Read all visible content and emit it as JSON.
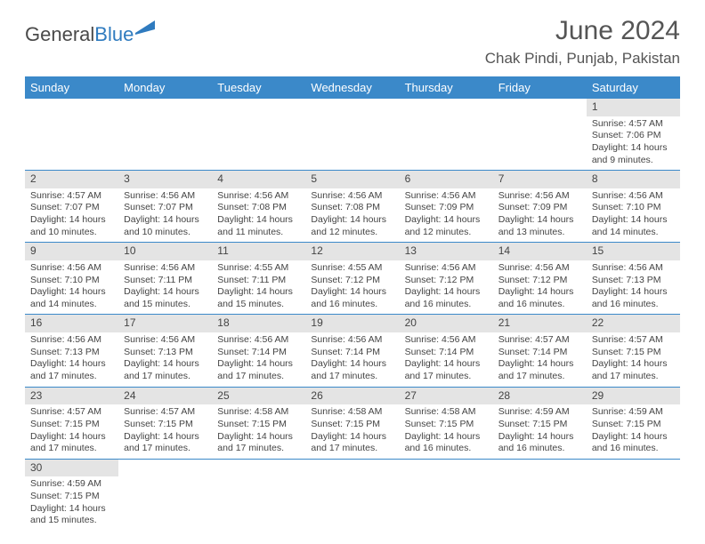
{
  "logo": {
    "dark": "General",
    "blue": "Blue"
  },
  "title": "June 2024",
  "location": "Chak Pindi, Punjab, Pakistan",
  "colors": {
    "header_bg": "#3b89c9",
    "header_text": "#ffffff",
    "daynum_bg": "#e4e4e4",
    "border": "#3b89c9"
  },
  "weekdays": [
    "Sunday",
    "Monday",
    "Tuesday",
    "Wednesday",
    "Thursday",
    "Friday",
    "Saturday"
  ],
  "weeks": [
    [
      null,
      null,
      null,
      null,
      null,
      null,
      {
        "n": "1",
        "sr": "Sunrise: 4:57 AM",
        "ss": "Sunset: 7:06 PM",
        "dl": "Daylight: 14 hours and 9 minutes."
      }
    ],
    [
      {
        "n": "2",
        "sr": "Sunrise: 4:57 AM",
        "ss": "Sunset: 7:07 PM",
        "dl": "Daylight: 14 hours and 10 minutes."
      },
      {
        "n": "3",
        "sr": "Sunrise: 4:56 AM",
        "ss": "Sunset: 7:07 PM",
        "dl": "Daylight: 14 hours and 10 minutes."
      },
      {
        "n": "4",
        "sr": "Sunrise: 4:56 AM",
        "ss": "Sunset: 7:08 PM",
        "dl": "Daylight: 14 hours and 11 minutes."
      },
      {
        "n": "5",
        "sr": "Sunrise: 4:56 AM",
        "ss": "Sunset: 7:08 PM",
        "dl": "Daylight: 14 hours and 12 minutes."
      },
      {
        "n": "6",
        "sr": "Sunrise: 4:56 AM",
        "ss": "Sunset: 7:09 PM",
        "dl": "Daylight: 14 hours and 12 minutes."
      },
      {
        "n": "7",
        "sr": "Sunrise: 4:56 AM",
        "ss": "Sunset: 7:09 PM",
        "dl": "Daylight: 14 hours and 13 minutes."
      },
      {
        "n": "8",
        "sr": "Sunrise: 4:56 AM",
        "ss": "Sunset: 7:10 PM",
        "dl": "Daylight: 14 hours and 14 minutes."
      }
    ],
    [
      {
        "n": "9",
        "sr": "Sunrise: 4:56 AM",
        "ss": "Sunset: 7:10 PM",
        "dl": "Daylight: 14 hours and 14 minutes."
      },
      {
        "n": "10",
        "sr": "Sunrise: 4:56 AM",
        "ss": "Sunset: 7:11 PM",
        "dl": "Daylight: 14 hours and 15 minutes."
      },
      {
        "n": "11",
        "sr": "Sunrise: 4:55 AM",
        "ss": "Sunset: 7:11 PM",
        "dl": "Daylight: 14 hours and 15 minutes."
      },
      {
        "n": "12",
        "sr": "Sunrise: 4:55 AM",
        "ss": "Sunset: 7:12 PM",
        "dl": "Daylight: 14 hours and 16 minutes."
      },
      {
        "n": "13",
        "sr": "Sunrise: 4:56 AM",
        "ss": "Sunset: 7:12 PM",
        "dl": "Daylight: 14 hours and 16 minutes."
      },
      {
        "n": "14",
        "sr": "Sunrise: 4:56 AM",
        "ss": "Sunset: 7:12 PM",
        "dl": "Daylight: 14 hours and 16 minutes."
      },
      {
        "n": "15",
        "sr": "Sunrise: 4:56 AM",
        "ss": "Sunset: 7:13 PM",
        "dl": "Daylight: 14 hours and 16 minutes."
      }
    ],
    [
      {
        "n": "16",
        "sr": "Sunrise: 4:56 AM",
        "ss": "Sunset: 7:13 PM",
        "dl": "Daylight: 14 hours and 17 minutes."
      },
      {
        "n": "17",
        "sr": "Sunrise: 4:56 AM",
        "ss": "Sunset: 7:13 PM",
        "dl": "Daylight: 14 hours and 17 minutes."
      },
      {
        "n": "18",
        "sr": "Sunrise: 4:56 AM",
        "ss": "Sunset: 7:14 PM",
        "dl": "Daylight: 14 hours and 17 minutes."
      },
      {
        "n": "19",
        "sr": "Sunrise: 4:56 AM",
        "ss": "Sunset: 7:14 PM",
        "dl": "Daylight: 14 hours and 17 minutes."
      },
      {
        "n": "20",
        "sr": "Sunrise: 4:56 AM",
        "ss": "Sunset: 7:14 PM",
        "dl": "Daylight: 14 hours and 17 minutes."
      },
      {
        "n": "21",
        "sr": "Sunrise: 4:57 AM",
        "ss": "Sunset: 7:14 PM",
        "dl": "Daylight: 14 hours and 17 minutes."
      },
      {
        "n": "22",
        "sr": "Sunrise: 4:57 AM",
        "ss": "Sunset: 7:15 PM",
        "dl": "Daylight: 14 hours and 17 minutes."
      }
    ],
    [
      {
        "n": "23",
        "sr": "Sunrise: 4:57 AM",
        "ss": "Sunset: 7:15 PM",
        "dl": "Daylight: 14 hours and 17 minutes."
      },
      {
        "n": "24",
        "sr": "Sunrise: 4:57 AM",
        "ss": "Sunset: 7:15 PM",
        "dl": "Daylight: 14 hours and 17 minutes."
      },
      {
        "n": "25",
        "sr": "Sunrise: 4:58 AM",
        "ss": "Sunset: 7:15 PM",
        "dl": "Daylight: 14 hours and 17 minutes."
      },
      {
        "n": "26",
        "sr": "Sunrise: 4:58 AM",
        "ss": "Sunset: 7:15 PM",
        "dl": "Daylight: 14 hours and 17 minutes."
      },
      {
        "n": "27",
        "sr": "Sunrise: 4:58 AM",
        "ss": "Sunset: 7:15 PM",
        "dl": "Daylight: 14 hours and 16 minutes."
      },
      {
        "n": "28",
        "sr": "Sunrise: 4:59 AM",
        "ss": "Sunset: 7:15 PM",
        "dl": "Daylight: 14 hours and 16 minutes."
      },
      {
        "n": "29",
        "sr": "Sunrise: 4:59 AM",
        "ss": "Sunset: 7:15 PM",
        "dl": "Daylight: 14 hours and 16 minutes."
      }
    ],
    [
      {
        "n": "30",
        "sr": "Sunrise: 4:59 AM",
        "ss": "Sunset: 7:15 PM",
        "dl": "Daylight: 14 hours and 15 minutes."
      },
      null,
      null,
      null,
      null,
      null,
      null
    ]
  ]
}
